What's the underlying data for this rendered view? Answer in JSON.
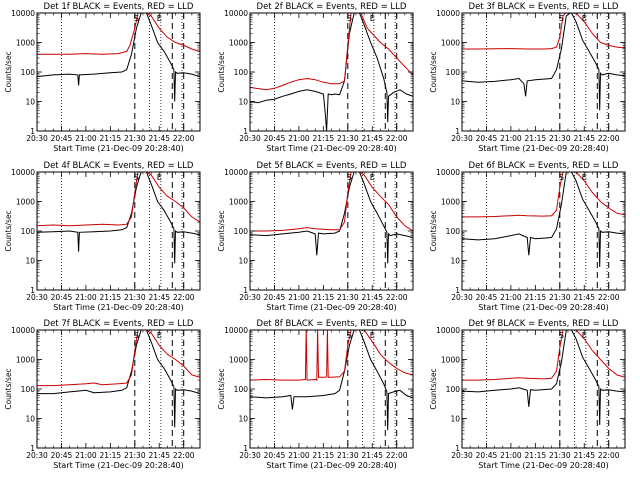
{
  "colors": {
    "events": "#000000",
    "lld": "#cc0000",
    "marker": "#000000"
  },
  "shared": {
    "xlabel": "Start Time (21-Dec-09 20:28:40)",
    "ylabel": "Counts/sec",
    "xtick_labels": [
      "20:30",
      "20:45",
      "21:00",
      "21:15",
      "21:30",
      "21:45",
      "22:00"
    ],
    "xtick_minutes": [
      0,
      15,
      30,
      45,
      60,
      75,
      90
    ],
    "xlim_minutes": [
      0,
      100
    ],
    "ylim": [
      1,
      10000
    ],
    "yscale": "log",
    "ytick_labels": [
      "1",
      "10",
      "100",
      "1000",
      "10000"
    ],
    "ytick_values": [
      1,
      10,
      100,
      1000,
      10000
    ],
    "dotted_markers_minutes": [
      15,
      69,
      76,
      89
    ],
    "dashed_markers_minutes": [
      60,
      83,
      90
    ],
    "annotations": [
      {
        "text": "S",
        "x_minutes": 61
      },
      {
        "text": "E",
        "x_minutes": 75
      }
    ]
  },
  "chart_data": [
    {
      "type": "line",
      "title": "Det 1f BLACK = Events, RED = LLD",
      "series": [
        {
          "name": "Events",
          "color": "#000000",
          "x": [
            0,
            10,
            20,
            25,
            25.5,
            26,
            35,
            45,
            52,
            55,
            58,
            61,
            64,
            67,
            70,
            74,
            78,
            82,
            84,
            84.5,
            85,
            86,
            90,
            95,
            100
          ],
          "y": [
            70,
            80,
            85,
            80,
            35,
            80,
            85,
            95,
            100,
            120,
            400,
            3000,
            12000,
            12000,
            4000,
            1000,
            500,
            200,
            120,
            10,
            100,
            90,
            95,
            85,
            70
          ]
        },
        {
          "name": "LLD",
          "color": "#cc0000",
          "x": [
            0,
            10,
            20,
            30,
            40,
            50,
            55,
            57,
            60,
            62,
            64,
            66,
            70,
            75,
            80,
            85,
            90,
            95,
            100
          ],
          "y": [
            400,
            400,
            400,
            420,
            400,
            420,
            500,
            800,
            3000,
            12000,
            12000,
            12000,
            8000,
            3000,
            1500,
            1000,
            800,
            600,
            500
          ]
        }
      ]
    },
    {
      "type": "line",
      "title": "Det 2f BLACK = Events, RED = LLD",
      "series": [
        {
          "name": "Events",
          "color": "#000000",
          "x": [
            0,
            5,
            10,
            15,
            20,
            25,
            30,
            35,
            40,
            45,
            46,
            47,
            48,
            50,
            52,
            55,
            58,
            61,
            64,
            67,
            70,
            74,
            78,
            82,
            84,
            84.5,
            85,
            88,
            92,
            96,
            100
          ],
          "y": [
            10,
            9,
            11,
            12,
            15,
            18,
            22,
            25,
            22,
            18,
            5,
            1,
            18,
            17,
            18,
            17,
            50,
            2000,
            12000,
            12000,
            4000,
            1000,
            300,
            60,
            20,
            2,
            15,
            20,
            25,
            18,
            15
          ]
        },
        {
          "name": "LLD",
          "color": "#cc0000",
          "x": [
            0,
            10,
            15,
            20,
            25,
            30,
            35,
            40,
            45,
            50,
            55,
            58,
            60,
            62,
            64,
            66,
            68,
            72,
            75,
            80,
            85,
            90,
            95,
            100
          ],
          "y": [
            30,
            25,
            28,
            35,
            45,
            55,
            60,
            55,
            45,
            40,
            40,
            50,
            800,
            12000,
            12000,
            12000,
            10000,
            3000,
            2000,
            1000,
            600,
            300,
            150,
            80
          ]
        }
      ]
    },
    {
      "type": "line",
      "title": "Det 3f BLACK = Events, RED = LLD",
      "series": [
        {
          "name": "Events",
          "color": "#000000",
          "x": [
            0,
            10,
            20,
            30,
            35,
            38,
            39,
            40,
            45,
            55,
            58,
            61,
            64,
            67,
            70,
            74,
            78,
            82,
            84,
            84.5,
            85,
            86,
            90,
            95,
            100
          ],
          "y": [
            50,
            45,
            48,
            55,
            60,
            40,
            15,
            50,
            55,
            60,
            120,
            600,
            8000,
            12000,
            5000,
            1200,
            500,
            200,
            120,
            5,
            90,
            80,
            90,
            80,
            75
          ]
        },
        {
          "name": "LLD",
          "color": "#cc0000",
          "x": [
            0,
            10,
            20,
            30,
            40,
            50,
            55,
            58,
            60,
            62,
            64,
            66,
            70,
            75,
            80,
            85,
            90,
            95,
            100
          ],
          "y": [
            600,
            600,
            610,
            620,
            600,
            600,
            620,
            700,
            1500,
            8000,
            12000,
            12000,
            10000,
            5000,
            2000,
            1000,
            800,
            700,
            650
          ]
        }
      ]
    },
    {
      "type": "line",
      "title": "Det 4f BLACK = Events, RED = LLD",
      "series": [
        {
          "name": "Events",
          "color": "#000000",
          "x": [
            0,
            10,
            20,
            25,
            25.5,
            26,
            35,
            45,
            52,
            55,
            58,
            61,
            64,
            67,
            70,
            74,
            78,
            82,
            84,
            84.5,
            85,
            86,
            90,
            95,
            100
          ],
          "y": [
            90,
            95,
            100,
            90,
            20,
            90,
            95,
            100,
            110,
            130,
            400,
            3000,
            12000,
            12000,
            4000,
            1000,
            500,
            200,
            120,
            8,
            100,
            90,
            95,
            85,
            75
          ]
        },
        {
          "name": "LLD",
          "color": "#cc0000",
          "x": [
            0,
            10,
            20,
            30,
            40,
            50,
            55,
            58,
            60,
            62,
            64,
            66,
            70,
            75,
            80,
            85,
            90,
            95,
            100
          ],
          "y": [
            150,
            160,
            150,
            160,
            170,
            160,
            170,
            300,
            2000,
            12000,
            12000,
            12000,
            8000,
            3000,
            1500,
            1000,
            600,
            300,
            200
          ]
        }
      ]
    },
    {
      "type": "line",
      "title": "Det 5f BLACK = Events, RED = LLD",
      "series": [
        {
          "name": "Events",
          "color": "#000000",
          "x": [
            0,
            10,
            20,
            30,
            35,
            40,
            41,
            42,
            45,
            52,
            55,
            58,
            61,
            64,
            67,
            70,
            74,
            78,
            82,
            84,
            84.5,
            85,
            86,
            90,
            95,
            100
          ],
          "y": [
            75,
            70,
            80,
            90,
            100,
            80,
            15,
            85,
            80,
            85,
            100,
            400,
            3000,
            12000,
            12000,
            4000,
            1000,
            400,
            150,
            90,
            8,
            80,
            70,
            80,
            70,
            60
          ]
        },
        {
          "name": "LLD",
          "color": "#cc0000",
          "x": [
            0,
            10,
            20,
            30,
            35,
            40,
            50,
            55,
            58,
            60,
            62,
            64,
            66,
            70,
            75,
            80,
            85,
            90,
            95,
            100
          ],
          "y": [
            100,
            100,
            105,
            120,
            130,
            120,
            110,
            110,
            200,
            2000,
            12000,
            12000,
            12000,
            8000,
            3000,
            1500,
            800,
            300,
            150,
            100
          ]
        }
      ]
    },
    {
      "type": "line",
      "title": "Det 6f BLACK = Events, RED = LLD",
      "series": [
        {
          "name": "Events",
          "color": "#000000",
          "x": [
            0,
            10,
            20,
            30,
            35,
            40,
            41,
            42,
            45,
            55,
            58,
            61,
            64,
            67,
            70,
            74,
            78,
            82,
            84,
            84.5,
            85,
            86,
            90,
            95,
            100
          ],
          "y": [
            55,
            50,
            55,
            70,
            80,
            60,
            15,
            60,
            55,
            60,
            120,
            800,
            10000,
            12000,
            5000,
            1200,
            500,
            200,
            120,
            6,
            100,
            90,
            95,
            85,
            80
          ]
        },
        {
          "name": "LLD",
          "color": "#cc0000",
          "x": [
            0,
            10,
            20,
            30,
            35,
            40,
            50,
            55,
            58,
            60,
            62,
            64,
            66,
            70,
            75,
            80,
            85,
            90,
            95,
            100
          ],
          "y": [
            300,
            300,
            310,
            330,
            340,
            330,
            320,
            330,
            500,
            3000,
            12000,
            12000,
            12000,
            10000,
            5000,
            2000,
            1000,
            600,
            400,
            350
          ]
        }
      ]
    },
    {
      "type": "line",
      "title": "Det 7f BLACK = Events, RED = LLD",
      "series": [
        {
          "name": "Events",
          "color": "#000000",
          "x": [
            0,
            10,
            20,
            25,
            30,
            35,
            45,
            52,
            55,
            58,
            61,
            64,
            67,
            70,
            74,
            78,
            82,
            84,
            84.5,
            85,
            86,
            90,
            95,
            100
          ],
          "y": [
            70,
            70,
            80,
            85,
            90,
            75,
            80,
            90,
            110,
            400,
            3000,
            12000,
            12000,
            4000,
            1000,
            500,
            200,
            120,
            5,
            100,
            90,
            95,
            85,
            70
          ]
        },
        {
          "name": "LLD",
          "color": "#cc0000",
          "x": [
            0,
            10,
            20,
            30,
            35,
            40,
            50,
            55,
            58,
            60,
            62,
            64,
            66,
            70,
            75,
            80,
            85,
            90,
            95,
            100
          ],
          "y": [
            130,
            130,
            140,
            150,
            160,
            140,
            150,
            160,
            300,
            2000,
            12000,
            12000,
            12000,
            8000,
            3000,
            1500,
            1000,
            600,
            300,
            250
          ]
        }
      ]
    },
    {
      "type": "line",
      "title": "Det 8f BLACK = Events, RED = LLD",
      "series": [
        {
          "name": "Events",
          "color": "#000000",
          "x": [
            0,
            10,
            20,
            25,
            26,
            27,
            35,
            45,
            52,
            55,
            58,
            61,
            64,
            67,
            70,
            74,
            78,
            82,
            84,
            84.5,
            85,
            88,
            92,
            96,
            100
          ],
          "y": [
            55,
            50,
            55,
            60,
            20,
            55,
            55,
            60,
            70,
            90,
            400,
            3000,
            12000,
            12000,
            4000,
            1000,
            400,
            150,
            80,
            4,
            70,
            80,
            90,
            60,
            50
          ]
        },
        {
          "name": "LLD",
          "color": "#cc0000",
          "x": [
            0,
            10,
            20,
            30,
            34,
            34.5,
            35,
            40,
            41,
            41.5,
            42,
            46,
            47,
            47.5,
            48,
            50,
            55,
            58,
            60,
            62,
            64,
            66,
            70,
            75,
            80,
            85,
            90,
            95,
            100
          ],
          "y": [
            200,
            210,
            200,
            200,
            210,
            12000,
            200,
            210,
            200,
            12000,
            250,
            250,
            260,
            12000,
            250,
            250,
            260,
            400,
            3000,
            12000,
            12000,
            12000,
            10000,
            4000,
            1500,
            800,
            500,
            350,
            300
          ]
        }
      ]
    },
    {
      "type": "line",
      "title": "Det 9f BLACK = Events, RED = LLD",
      "series": [
        {
          "name": "Events",
          "color": "#000000",
          "x": [
            0,
            10,
            20,
            30,
            35,
            40,
            41,
            42,
            45,
            55,
            58,
            61,
            64,
            67,
            70,
            74,
            78,
            82,
            84,
            84.5,
            85,
            86,
            90,
            95,
            100
          ],
          "y": [
            85,
            80,
            90,
            100,
            110,
            90,
            25,
            95,
            90,
            100,
            150,
            800,
            10000,
            12000,
            5000,
            1200,
            500,
            200,
            120,
            6,
            100,
            90,
            95,
            85,
            80
          ]
        },
        {
          "name": "LLD",
          "color": "#cc0000",
          "x": [
            0,
            10,
            20,
            30,
            35,
            40,
            50,
            55,
            58,
            60,
            62,
            64,
            66,
            70,
            75,
            80,
            85,
            90,
            95,
            100
          ],
          "y": [
            200,
            200,
            210,
            230,
            240,
            230,
            220,
            230,
            400,
            2500,
            12000,
            12000,
            12000,
            10000,
            5000,
            2000,
            1000,
            500,
            300,
            250
          ]
        }
      ]
    }
  ]
}
